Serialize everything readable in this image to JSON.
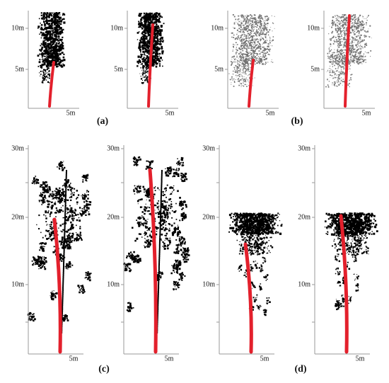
{
  "panels": [
    {
      "caption": "(a)",
      "plots": [
        {
          "y_ticks": [
            "10m",
            "5m"
          ],
          "x_tick": "5m"
        },
        {
          "y_ticks": [
            "10m",
            "5m"
          ],
          "x_tick": "5m"
        }
      ]
    },
    {
      "caption": "(b)",
      "plots": [
        {
          "y_ticks": [
            "10m",
            "5m"
          ],
          "x_tick": "5m"
        },
        {
          "y_ticks": [
            "10m",
            "5m"
          ],
          "x_tick": "5m"
        }
      ]
    },
    {
      "caption": "(c)",
      "plots": [
        {
          "y_ticks": [
            "30m",
            "20m",
            "10m"
          ],
          "x_tick": "5m"
        },
        {
          "y_ticks": [
            "30m",
            "20m",
            "10m"
          ],
          "x_tick": "5m"
        }
      ]
    },
    {
      "caption": "(d)",
      "plots": [
        {
          "y_ticks": [
            "30m",
            "20m",
            "10m"
          ],
          "x_tick": "5m"
        },
        {
          "y_ticks": [
            "30m",
            "20m",
            "10m"
          ],
          "x_tick": "5m"
        }
      ]
    }
  ]
}
